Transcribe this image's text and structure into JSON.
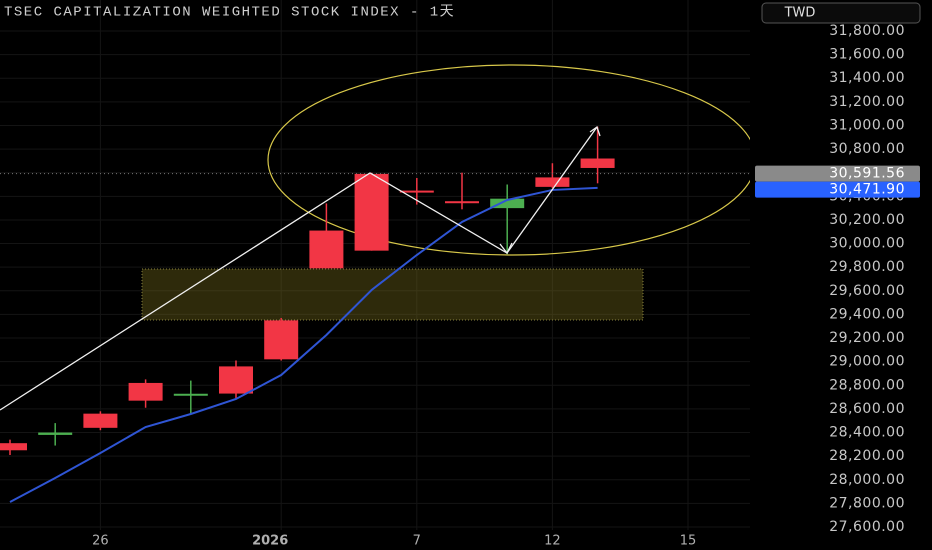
{
  "chart_data": {
    "type": "candlestick",
    "title": "TSEC CAPITALIZATION WEIGHTED STOCK INDEX - 1天",
    "currency": "TWD",
    "categories": [
      null,
      null,
      "26",
      null,
      null,
      null,
      "2026",
      null,
      null,
      "7",
      null,
      null,
      "12",
      null,
      null,
      "15"
    ],
    "open": [
      28250,
      28400,
      28440,
      28670,
      28720,
      28730,
      29020,
      29790,
      29940,
      30430,
      30340,
      30380,
      30480,
      30640,
      null,
      null
    ],
    "high": [
      28340,
      28480,
      28580,
      28850,
      28840,
      29010,
      29370,
      30340,
      30600,
      30555,
      30600,
      30500,
      30680,
      30990,
      null,
      null
    ],
    "low": [
      28210,
      28290,
      28420,
      28610,
      28560,
      28690,
      29010,
      29790,
      29940,
      30330,
      30290,
      29910,
      30470,
      30510,
      null,
      null
    ],
    "close": [
      28310,
      28380,
      28560,
      28820,
      28710,
      28960,
      29350,
      30110,
      30590,
      30440,
      30350,
      30300,
      30560,
      30720,
      null,
      null
    ],
    "up_color": "#f23645",
    "down_color": "#4caf50",
    "ma": {
      "color": "#2f55d4",
      "values": [
        27812,
        28015,
        28227,
        28447,
        28557,
        28684,
        28887,
        29226,
        29607,
        29903,
        30183,
        30369,
        30454,
        30471.9,
        null,
        null
      ]
    },
    "price_tags": [
      {
        "value": 30591.56,
        "label": "30,591.56",
        "color": "#8a8a8a"
      },
      {
        "value": 30471.9,
        "label": "30,471.90",
        "color": "#2962ff"
      }
    ],
    "ylim": [
      27575,
      32062
    ],
    "yticks": [
      {
        "value": 27600,
        "label": "27,600.00"
      },
      {
        "value": 27800,
        "label": "27,800.00"
      },
      {
        "value": 28000,
        "label": "28,000.00"
      },
      {
        "value": 28200,
        "label": "28,200.00"
      },
      {
        "value": 28400,
        "label": "28,400.00"
      },
      {
        "value": 28600,
        "label": "28,600.00"
      },
      {
        "value": 28800,
        "label": "28,800.00"
      },
      {
        "value": 29000,
        "label": "29,000.00"
      },
      {
        "value": 29200,
        "label": "29,200.00"
      },
      {
        "value": 29400,
        "label": "29,400.00"
      },
      {
        "value": 29600,
        "label": "29,600.00"
      },
      {
        "value": 29800,
        "label": "29,800.00"
      },
      {
        "value": 30000,
        "label": "30,000.00"
      },
      {
        "value": 30200,
        "label": "30,200.00"
      },
      {
        "value": 30400,
        "label": "30,400.00"
      },
      {
        "value": 30600,
        "label": "30,600.00"
      },
      {
        "value": 30800,
        "label": "30,800.00"
      },
      {
        "value": 31000,
        "label": "31,000.00"
      },
      {
        "value": 31200,
        "label": "31,200.00"
      },
      {
        "value": 31400,
        "label": "31,400.00"
      },
      {
        "value": 31600,
        "label": "31,600.00"
      },
      {
        "value": 31800,
        "label": "31,800.00"
      }
    ],
    "grid": true
  }
}
